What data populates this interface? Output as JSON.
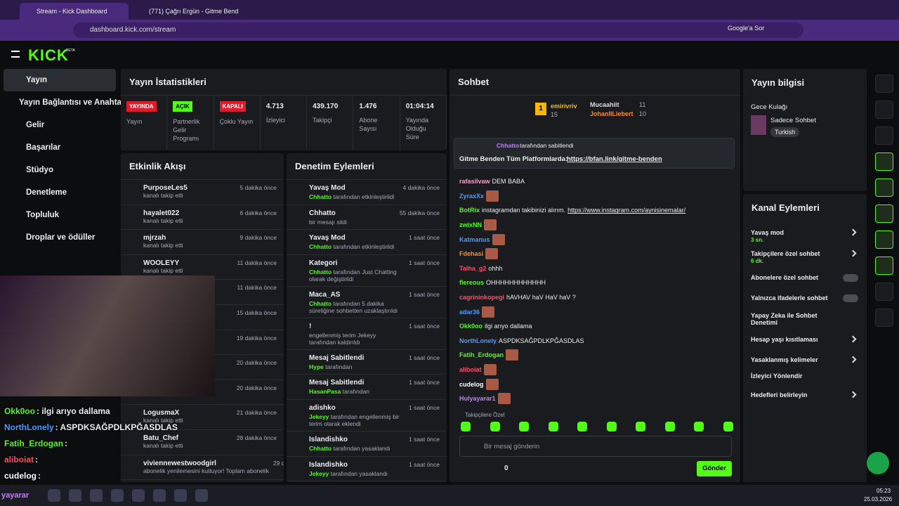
{
  "browser": {
    "tabs": [
      "Stream - Kick Dashboard",
      "(771) Çağrı Ergün - Gitme Bend"
    ],
    "url": "dashboard.kick.com/stream",
    "ask": "Google'a Sor"
  },
  "sidebar": {
    "logo": "KICK",
    "logo_badge": "BETA",
    "items": [
      "Yayın",
      "Yayın Bağlantısı ve Anahtarı",
      "Gelir",
      "Başarılar",
      "Stüdyo",
      "Denetleme",
      "Topluluk",
      "Droplar ve ödüller"
    ]
  },
  "stats": {
    "title": "Yayın İstatistikleri",
    "cells": [
      {
        "badge": "YAYINDA",
        "label": "Yayın"
      },
      {
        "badge": "AÇIK",
        "label": "Partnerlik Gelir Programı"
      },
      {
        "badge": "KAPALI",
        "label": "Çoklu Yayın"
      },
      {
        "value": "4.713",
        "label": "İzleyici"
      },
      {
        "value": "439.170",
        "label": "Takipçi"
      },
      {
        "value": "1.476",
        "label": "Abone Sayısı"
      },
      {
        "value": "01:04:14",
        "label": "Yayında Olduğu Süre"
      }
    ]
  },
  "activity": {
    "title": "Etkinlik Akışı",
    "items": [
      {
        "name": "PurposeLes5",
        "text": "kanalı takip etti",
        "time": "5 dakika önce"
      },
      {
        "name": "hayalet022",
        "text": "kanalı takip etti",
        "time": "6 dakika önce"
      },
      {
        "name": "mjrzah",
        "text": "kanalı takip etti",
        "time": "9 dakika önce"
      },
      {
        "name": "WOOLEYY",
        "text": "kanalı takip etti",
        "time": "11 dakika önce"
      },
      {
        "time": "11 dakika önce"
      },
      {
        "time": "15 dakika önce"
      },
      {
        "time": "19 dakika önce"
      },
      {
        "time": "20 dakika önce"
      },
      {
        "text": "kanalı takip etti",
        "time": "20 dakika önce"
      },
      {
        "name": "LogusmaX",
        "text": "kanalı takip etti",
        "time": "21 dakika önce"
      },
      {
        "name": "Batu_Chef",
        "text": "kanalı takip etti",
        "time": "28 dakika önce"
      },
      {
        "name": "viviennewestwoodgirl",
        "text": "abonelik yenilemesini kutluyor! Toplam abonelik",
        "time": "29 dakika önce"
      }
    ]
  },
  "moderation": {
    "title": "Denetim Eylemleri",
    "items": [
      {
        "title": "Yavaş Mod",
        "user": "Chhatto",
        "text": "tarafından etkinleştirildi",
        "time": "4 dakika önce"
      },
      {
        "title": "Chhatto",
        "text": "bir mesajı sildi",
        "time": "55 dakika önce"
      },
      {
        "title": "Yavaş Mod",
        "user": "Chhatto",
        "text": "tarafından etkinleştirildi",
        "time": "1 saat önce"
      },
      {
        "title": "Kategori",
        "user": "Chhatto",
        "text": "tarafından Just Chatting olarak değiştirildi",
        "time": "1 saat önce"
      },
      {
        "title": "Maca_AS",
        "user": "Chhatto",
        "text": "tarafından 5 dakika süreliğine sohbetten uzaklaştırıldı",
        "time": "1 saat önce"
      },
      {
        "title": "!",
        "text": "engellenmiş terim Jekeyy tarafından kaldırıldı",
        "time": "1 saat önce"
      },
      {
        "title": "Mesaj Sabitlendi",
        "user": "Hype",
        "text": "tarafından",
        "time": "1 saat önce"
      },
      {
        "title": "Mesaj Sabitlendi",
        "user": "HasanPasa",
        "text": "tarafından",
        "time": "1 saat önce"
      },
      {
        "title": "adishko",
        "user": "Jekeyy",
        "text": "tarafından engellenmiş bir terim olarak eklendi",
        "time": "1 saat önce"
      },
      {
        "title": "Islandishko",
        "user": "Chhatto",
        "text": "tarafından yasaklandı",
        "time": "1 saat önce"
      },
      {
        "title": "Islandishko",
        "user": "Jekeyy",
        "text": "tarafından yasaklandı",
        "time": "1 saat önce"
      }
    ]
  },
  "chat": {
    "title": "Sohbet",
    "leaders": [
      {
        "rank": "1",
        "name": "emirivriv",
        "count": "15"
      },
      {
        "name": "Mucaahiit",
        "count": "11"
      },
      {
        "name": "JohanIILiebert",
        "count": "10"
      }
    ],
    "pinned": {
      "by": "Chhatto",
      "by_text": "tarafından sabitlendi",
      "text": "Gitme Benden Tüm Platformlarda:",
      "link": "https://bfan.link/gitme-benden"
    },
    "messages": [
      {
        "user": "rafasilvaw",
        "color": "#f5a3c7",
        "text": "DEM BABA"
      },
      {
        "user": "ZyraxXx",
        "color": "#4c9cff",
        "text": ""
      },
      {
        "user": "BotRix",
        "color": "#53fc18",
        "text": "instagramdan takibinizi alırım.",
        "link": "https://www.instagram.com/aynisinemalar/"
      },
      {
        "user": "zwixNN",
        "color": "#53fc18"
      },
      {
        "user": "Katmanus",
        "color": "#4c9cff"
      },
      {
        "user": "Fdehasi",
        "color": "#ff8c2b"
      },
      {
        "user": "Talha_g2",
        "color": "#ff4d6a",
        "text": "ohhh"
      },
      {
        "user": "flereous",
        "color": "#53fc18",
        "text": "OHHHHHHHHHHHH"
      },
      {
        "user": "cagrininkopegi",
        "color": "#ff4d6a",
        "text": "hAVHAV haV HaV haV ?"
      },
      {
        "user": "adar36",
        "color": "#4c9cff"
      },
      {
        "user": "Okk0oo",
        "color": "#53fc18",
        "text": "ilgi arıyo dallama"
      },
      {
        "user": "NorthLonely",
        "color": "#4c9cff",
        "text": "ASPDKSAĞPDLKPĞASDLAS"
      },
      {
        "user": "Fatih_Erdogan",
        "color": "#53fc18"
      },
      {
        "user": "aliboiat",
        "color": "#ff4d6a"
      },
      {
        "user": "cudelog",
        "color": "#ffffff"
      },
      {
        "user": "Hulyayarar1",
        "color": "#c77dff"
      }
    ],
    "followers_only": "Takipçilere Özel",
    "placeholder": "Bir mesaj gönderin",
    "count": "0",
    "send": "Gönder"
  },
  "info": {
    "title": "Yayın bilgisi",
    "stream_title": "Gece Kulağı",
    "category": "Sadece Sohbet",
    "tag": "Turkish"
  },
  "actions": {
    "title": "Kanal Eylemleri",
    "items": [
      {
        "label": "Yavaş mod",
        "sub": "3 sn.",
        "ctl": "arrow"
      },
      {
        "label": "Takipçilere özel sohbet",
        "sub": "6 dk.",
        "ctl": "arrow"
      },
      {
        "label": "Abonelere özel sohbet",
        "ctl": "toggle"
      },
      {
        "label": "Yalnızca ifadelerle sohbet",
        "ctl": "toggle"
      },
      {
        "label": "Yapay Zeka ile Sohbet Denetimi",
        "ctl": "ext"
      },
      {
        "label": "Hesap yaşı kısıtlaması",
        "ctl": "arrow"
      },
      {
        "label": "Yasaklanmış kelimeler",
        "ctl": "arrow"
      },
      {
        "label": "İzleyici Yönlendir"
      },
      {
        "label": "Hedefleri belirleyin",
        "ctl": "arrow"
      }
    ]
  },
  "overlay": [
    {
      "user": "Okk0oo",
      "color": "#53fc18",
      "text": ": ilgi arıyo dallama"
    },
    {
      "user": "NorthLonely",
      "color": "#4c9cff",
      "text": ": ASPDKSAĞPDLKPĞASDLAS"
    },
    {
      "user": "Fatih_Erdogan",
      "color": "#53fc18",
      "text": " :"
    },
    {
      "user": "aliboiat",
      "color": "#ff4d6a",
      "text": " :"
    },
    {
      "user": "cudelog",
      "color": "#ffffff",
      "text": " :"
    }
  ],
  "taskbar": {
    "user": "yayarar",
    "time": "05:23",
    "date": "25.03.2026"
  }
}
